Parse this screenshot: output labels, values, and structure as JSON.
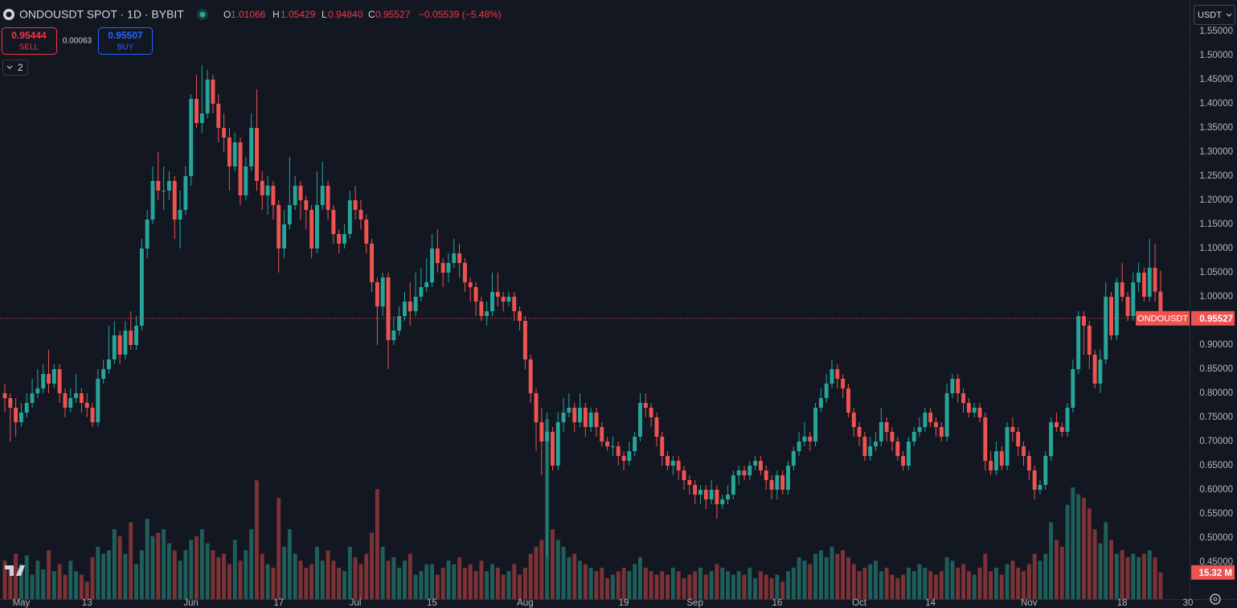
{
  "header": {
    "symbol": "ONDOUSDT SPOT · 1D · BYBIT",
    "ohlc_labels": [
      "O",
      "H",
      "L",
      "C"
    ],
    "ohlc_values": [
      "1.01066",
      "1.05429",
      "0.94840",
      "0.95527"
    ],
    "change": "−0.05539 (−5.48%)",
    "sell_price": "0.95444",
    "sell_label": "SELL",
    "spread": "0.00063",
    "buy_price": "0.95507",
    "buy_label": "BUY",
    "indicator_count": "2",
    "currency": "USDT"
  },
  "chart_data": {
    "type": "candlestick",
    "symbol_label": "ONDOUSDT",
    "volume_label": "15.32 M",
    "up_color": "#26a69a",
    "down_color": "#ef5350",
    "volume_up_color": "#1e5f5a",
    "volume_down_color": "#7d3236",
    "grid": false,
    "xlim": [
      -0.88,
      216.3
    ],
    "xticks": [
      {
        "value": 3,
        "label": "May"
      },
      {
        "value": 15,
        "label": "13"
      },
      {
        "value": 34,
        "label": "Jun"
      },
      {
        "value": 50,
        "label": "17"
      },
      {
        "value": 64,
        "label": "Jul"
      },
      {
        "value": 78,
        "label": "15"
      },
      {
        "value": 95,
        "label": "Aug"
      },
      {
        "value": 113,
        "label": "19"
      },
      {
        "value": 126,
        "label": "Sep"
      },
      {
        "value": 141,
        "label": "16"
      },
      {
        "value": 156,
        "label": "Oct"
      },
      {
        "value": 169,
        "label": "14"
      },
      {
        "value": 187,
        "label": "Nov"
      },
      {
        "value": 204,
        "label": "18"
      },
      {
        "value": 216,
        "label": "30"
      }
    ],
    "ylim": [
      0.3733,
      1.615
    ],
    "yticks": [
      {
        "value": 0.45,
        "label": "0.45000"
      },
      {
        "value": 0.5,
        "label": "0.50000"
      },
      {
        "value": 0.55,
        "label": "0.55000"
      },
      {
        "value": 0.6,
        "label": "0.60000"
      },
      {
        "value": 0.65,
        "label": "0.65000"
      },
      {
        "value": 0.7,
        "label": "0.70000"
      },
      {
        "value": 0.75,
        "label": "0.75000"
      },
      {
        "value": 0.8,
        "label": "0.80000"
      },
      {
        "value": 0.85,
        "label": "0.85000"
      },
      {
        "value": 0.9,
        "label": "0.90000"
      },
      {
        "value": 0.95,
        "label": "0.95000"
      },
      {
        "value": 1.0,
        "label": "1.00000"
      },
      {
        "value": 1.05,
        "label": "1.05000"
      },
      {
        "value": 1.1,
        "label": "1.10000"
      },
      {
        "value": 1.15,
        "label": "1.15000"
      },
      {
        "value": 1.2,
        "label": "1.20000"
      },
      {
        "value": 1.25,
        "label": "1.25000"
      },
      {
        "value": 1.3,
        "label": "1.30000"
      },
      {
        "value": 1.35,
        "label": "1.35000"
      },
      {
        "value": 1.4,
        "label": "1.40000"
      },
      {
        "value": 1.45,
        "label": "1.45000"
      },
      {
        "value": 1.5,
        "label": "1.50000"
      },
      {
        "value": 1.55,
        "label": "1.55000"
      }
    ],
    "vlim": [
      0,
      343
    ],
    "open": [
      0.8,
      0.79,
      0.77,
      0.74,
      0.76,
      0.78,
      0.8,
      0.81,
      0.84,
      0.82,
      0.85,
      0.8,
      0.77,
      0.79,
      0.8,
      0.78,
      0.77,
      0.74,
      0.83,
      0.85,
      0.87,
      0.92,
      0.88,
      0.93,
      0.9,
      0.94,
      1.1,
      1.16,
      1.24,
      1.22,
      1.22,
      1.24,
      1.16,
      1.18,
      1.25,
      1.41,
      1.36,
      1.38,
      1.45,
      1.4,
      1.35,
      1.33,
      1.27,
      1.32,
      1.21,
      1.27,
      1.35,
      1.24,
      1.21,
      1.23,
      1.19,
      1.1,
      1.15,
      1.19,
      1.23,
      1.2,
      1.18,
      1.1,
      1.19,
      1.23,
      1.18,
      1.13,
      1.11,
      1.13,
      1.2,
      1.18,
      1.16,
      1.11,
      1.03,
      0.98,
      1.04,
      0.91,
      0.93,
      0.96,
      0.99,
      0.97,
      1.0,
      1.02,
      1.03,
      1.1,
      1.07,
      1.05,
      1.07,
      1.09,
      1.07,
      1.03,
      1.02,
      0.99,
      0.96,
      0.97,
      1.01,
      1.0,
      0.99,
      1.0,
      0.97,
      0.95,
      0.87,
      0.8,
      0.74,
      0.7,
      0.72,
      0.65,
      0.74,
      0.76,
      0.77,
      0.74,
      0.77,
      0.73,
      0.76,
      0.73,
      0.7,
      0.69,
      0.69,
      0.67,
      0.66,
      0.68,
      0.71,
      0.78,
      0.77,
      0.75,
      0.71,
      0.67,
      0.65,
      0.66,
      0.64,
      0.62,
      0.61,
      0.59,
      0.6,
      0.58,
      0.6,
      0.57,
      0.58,
      0.59,
      0.63,
      0.64,
      0.63,
      0.65,
      0.66,
      0.64,
      0.62,
      0.6,
      0.63,
      0.6,
      0.65,
      0.68,
      0.7,
      0.71,
      0.7,
      0.77,
      0.79,
      0.82,
      0.85,
      0.83,
      0.81,
      0.76,
      0.73,
      0.71,
      0.67,
      0.69,
      0.7,
      0.74,
      0.72,
      0.7,
      0.67,
      0.65,
      0.7,
      0.72,
      0.73,
      0.76,
      0.74,
      0.73,
      0.71,
      0.8,
      0.83,
      0.8,
      0.78,
      0.76,
      0.77,
      0.75,
      0.66,
      0.64,
      0.68,
      0.65,
      0.73,
      0.72,
      0.69,
      0.67,
      0.64,
      0.6,
      0.61,
      0.67,
      0.74,
      0.73,
      0.72,
      0.77,
      0.85,
      0.96,
      0.94,
      0.88,
      0.82,
      0.87,
      1.0,
      0.92,
      1.03,
      1.0,
      0.96,
      1.03,
      1.05,
      1.0,
      1.06,
      1.01066
    ],
    "high": [
      0.82,
      0.8,
      0.79,
      0.78,
      0.8,
      0.83,
      0.85,
      0.86,
      0.89,
      0.86,
      0.86,
      0.81,
      0.81,
      0.84,
      0.81,
      0.8,
      0.78,
      0.85,
      0.87,
      0.94,
      0.95,
      0.93,
      0.95,
      0.97,
      0.96,
      1.12,
      1.18,
      1.27,
      1.3,
      1.27,
      1.26,
      1.25,
      1.22,
      1.27,
      1.42,
      1.46,
      1.48,
      1.47,
      1.46,
      1.42,
      1.38,
      1.35,
      1.34,
      1.33,
      1.29,
      1.38,
      1.43,
      1.26,
      1.25,
      1.24,
      1.2,
      1.18,
      1.29,
      1.25,
      1.24,
      1.21,
      1.19,
      1.26,
      1.28,
      1.24,
      1.19,
      1.14,
      1.15,
      1.22,
      1.23,
      1.2,
      1.17,
      1.12,
      1.04,
      1.05,
      1.05,
      0.96,
      0.98,
      1.01,
      1.03,
      1.05,
      1.06,
      1.08,
      1.13,
      1.14,
      1.08,
      1.09,
      1.12,
      1.11,
      1.08,
      1.04,
      1.03,
      1.0,
      0.99,
      1.05,
      1.05,
      1.01,
      1.01,
      1.01,
      0.98,
      0.96,
      0.88,
      0.81,
      0.77,
      0.76,
      0.73,
      0.76,
      0.79,
      0.8,
      0.78,
      0.8,
      0.78,
      0.77,
      0.77,
      0.74,
      0.71,
      0.71,
      0.7,
      0.68,
      0.7,
      0.72,
      0.8,
      0.8,
      0.78,
      0.76,
      0.72,
      0.68,
      0.67,
      0.67,
      0.65,
      0.63,
      0.62,
      0.61,
      0.61,
      0.62,
      0.61,
      0.59,
      0.61,
      0.64,
      0.65,
      0.65,
      0.66,
      0.67,
      0.67,
      0.65,
      0.63,
      0.64,
      0.64,
      0.66,
      0.69,
      0.72,
      0.74,
      0.72,
      0.78,
      0.81,
      0.84,
      0.87,
      0.86,
      0.84,
      0.82,
      0.77,
      0.74,
      0.72,
      0.71,
      0.72,
      0.77,
      0.75,
      0.73,
      0.71,
      0.68,
      0.71,
      0.73,
      0.75,
      0.77,
      0.77,
      0.75,
      0.74,
      0.82,
      0.84,
      0.84,
      0.81,
      0.79,
      0.78,
      0.78,
      0.76,
      0.68,
      0.7,
      0.69,
      0.74,
      0.75,
      0.73,
      0.7,
      0.68,
      0.65,
      0.62,
      0.68,
      0.75,
      0.76,
      0.74,
      0.78,
      0.87,
      0.97,
      0.97,
      0.95,
      0.89,
      0.89,
      1.03,
      1.01,
      1.04,
      1.07,
      1.01,
      1.05,
      1.07,
      1.06,
      1.12,
      1.11,
      1.05429
    ],
    "low": [
      0.76,
      0.7,
      0.71,
      0.73,
      0.75,
      0.77,
      0.79,
      0.8,
      0.8,
      0.81,
      0.78,
      0.75,
      0.76,
      0.78,
      0.76,
      0.75,
      0.73,
      0.73,
      0.82,
      0.84,
      0.86,
      0.86,
      0.87,
      0.89,
      0.89,
      0.93,
      1.08,
      1.15,
      1.2,
      1.18,
      1.2,
      1.12,
      1.1,
      1.17,
      1.23,
      1.35,
      1.34,
      1.37,
      1.38,
      1.32,
      1.3,
      1.22,
      1.26,
      1.19,
      1.2,
      1.26,
      1.22,
      1.18,
      1.17,
      1.16,
      1.05,
      1.08,
      1.14,
      1.18,
      1.16,
      1.14,
      1.08,
      1.09,
      1.18,
      1.16,
      1.11,
      1.09,
      1.1,
      1.12,
      1.16,
      1.14,
      1.09,
      1.01,
      0.9,
      0.96,
      0.85,
      0.9,
      0.92,
      0.95,
      0.94,
      0.96,
      0.99,
      1.01,
      1.02,
      1.05,
      1.02,
      1.03,
      1.06,
      1.04,
      1.01,
      0.99,
      0.96,
      0.95,
      0.94,
      0.96,
      0.98,
      0.97,
      0.98,
      0.95,
      0.93,
      0.85,
      0.78,
      0.68,
      0.63,
      0.46,
      0.64,
      0.64,
      0.72,
      0.75,
      0.72,
      0.73,
      0.71,
      0.72,
      0.71,
      0.69,
      0.68,
      0.67,
      0.65,
      0.64,
      0.65,
      0.67,
      0.7,
      0.75,
      0.73,
      0.69,
      0.65,
      0.64,
      0.63,
      0.62,
      0.6,
      0.59,
      0.57,
      0.57,
      0.56,
      0.57,
      0.54,
      0.56,
      0.57,
      0.58,
      0.61,
      0.62,
      0.62,
      0.64,
      0.63,
      0.6,
      0.58,
      0.58,
      0.59,
      0.59,
      0.64,
      0.67,
      0.69,
      0.68,
      0.69,
      0.76,
      0.78,
      0.81,
      0.81,
      0.79,
      0.75,
      0.71,
      0.69,
      0.66,
      0.66,
      0.68,
      0.69,
      0.7,
      0.68,
      0.66,
      0.64,
      0.64,
      0.69,
      0.71,
      0.72,
      0.73,
      0.71,
      0.7,
      0.7,
      0.79,
      0.78,
      0.76,
      0.75,
      0.75,
      0.74,
      0.64,
      0.63,
      0.63,
      0.64,
      0.64,
      0.7,
      0.67,
      0.65,
      0.62,
      0.58,
      0.59,
      0.6,
      0.66,
      0.72,
      0.71,
      0.71,
      0.76,
      0.84,
      0.88,
      0.85,
      0.81,
      0.8,
      0.86,
      0.91,
      0.91,
      0.99,
      0.95,
      0.95,
      1.01,
      0.99,
      0.99,
      0.99,
      0.9484
    ],
    "close": [
      0.79,
      0.77,
      0.74,
      0.76,
      0.78,
      0.8,
      0.81,
      0.84,
      0.82,
      0.85,
      0.8,
      0.77,
      0.79,
      0.8,
      0.78,
      0.77,
      0.74,
      0.83,
      0.85,
      0.87,
      0.92,
      0.88,
      0.93,
      0.9,
      0.94,
      1.1,
      1.16,
      1.24,
      1.22,
      1.22,
      1.24,
      1.16,
      1.18,
      1.25,
      1.41,
      1.36,
      1.38,
      1.45,
      1.4,
      1.35,
      1.33,
      1.27,
      1.32,
      1.21,
      1.27,
      1.35,
      1.24,
      1.21,
      1.23,
      1.19,
      1.1,
      1.15,
      1.19,
      1.23,
      1.2,
      1.18,
      1.1,
      1.19,
      1.23,
      1.18,
      1.13,
      1.11,
      1.13,
      1.2,
      1.18,
      1.16,
      1.11,
      1.03,
      0.98,
      1.04,
      0.91,
      0.93,
      0.96,
      0.99,
      0.97,
      1.0,
      1.02,
      1.03,
      1.1,
      1.07,
      1.05,
      1.07,
      1.09,
      1.07,
      1.03,
      1.02,
      0.99,
      0.96,
      0.97,
      1.01,
      1.0,
      0.99,
      1.0,
      0.97,
      0.95,
      0.87,
      0.8,
      0.74,
      0.7,
      0.72,
      0.65,
      0.74,
      0.76,
      0.77,
      0.74,
      0.77,
      0.73,
      0.76,
      0.73,
      0.7,
      0.69,
      0.69,
      0.67,
      0.66,
      0.68,
      0.71,
      0.78,
      0.77,
      0.75,
      0.71,
      0.67,
      0.65,
      0.66,
      0.64,
      0.62,
      0.61,
      0.59,
      0.6,
      0.58,
      0.6,
      0.57,
      0.58,
      0.59,
      0.63,
      0.64,
      0.63,
      0.65,
      0.66,
      0.64,
      0.62,
      0.6,
      0.63,
      0.6,
      0.65,
      0.68,
      0.7,
      0.71,
      0.7,
      0.77,
      0.79,
      0.82,
      0.85,
      0.83,
      0.81,
      0.76,
      0.73,
      0.71,
      0.67,
      0.69,
      0.7,
      0.74,
      0.72,
      0.7,
      0.67,
      0.65,
      0.7,
      0.72,
      0.73,
      0.76,
      0.74,
      0.73,
      0.71,
      0.8,
      0.83,
      0.8,
      0.78,
      0.76,
      0.77,
      0.75,
      0.66,
      0.64,
      0.68,
      0.65,
      0.73,
      0.72,
      0.69,
      0.67,
      0.64,
      0.6,
      0.61,
      0.67,
      0.74,
      0.73,
      0.72,
      0.77,
      0.85,
      0.96,
      0.94,
      0.88,
      0.82,
      0.87,
      1.0,
      0.92,
      1.03,
      1.0,
      0.96,
      1.03,
      1.05,
      1.0,
      1.06,
      1.01066,
      0.95527
    ],
    "volume": [
      22,
      18,
      26,
      20,
      25,
      14,
      22,
      17,
      28,
      16,
      20,
      14,
      22,
      16,
      14,
      10,
      24,
      30,
      26,
      28,
      40,
      36,
      26,
      44,
      20,
      28,
      46,
      36,
      38,
      40,
      32,
      28,
      22,
      28,
      34,
      36,
      40,
      32,
      28,
      24,
      26,
      20,
      34,
      22,
      28,
      40,
      68,
      26,
      20,
      18,
      58,
      30,
      40,
      26,
      22,
      18,
      20,
      30,
      22,
      28,
      22,
      18,
      16,
      30,
      24,
      20,
      26,
      38,
      63,
      30,
      22,
      24,
      18,
      22,
      26,
      14,
      16,
      20,
      20,
      14,
      18,
      22,
      20,
      24,
      18,
      20,
      16,
      22,
      16,
      20,
      18,
      14,
      16,
      20,
      14,
      18,
      26,
      30,
      34,
      103,
      40,
      34,
      30,
      24,
      26,
      22,
      20,
      18,
      16,
      18,
      12,
      14,
      16,
      18,
      16,
      20,
      24,
      18,
      16,
      14,
      16,
      14,
      18,
      16,
      12,
      14,
      16,
      18,
      14,
      16,
      20,
      18,
      16,
      14,
      16,
      14,
      18,
      12,
      16,
      14,
      12,
      14,
      10,
      16,
      18,
      24,
      22,
      20,
      26,
      28,
      24,
      30,
      26,
      28,
      24,
      20,
      16,
      18,
      20,
      22,
      16,
      18,
      14,
      12,
      14,
      18,
      16,
      20,
      18,
      16,
      14,
      16,
      24,
      22,
      18,
      20,
      16,
      14,
      18,
      26,
      16,
      18,
      14,
      20,
      22,
      18,
      16,
      20,
      26,
      22,
      26,
      44,
      34,
      30,
      54,
      64,
      60,
      58,
      52,
      40,
      32,
      44,
      34,
      26,
      28,
      24,
      26,
      24,
      26,
      28,
      24,
      15.32
    ]
  }
}
